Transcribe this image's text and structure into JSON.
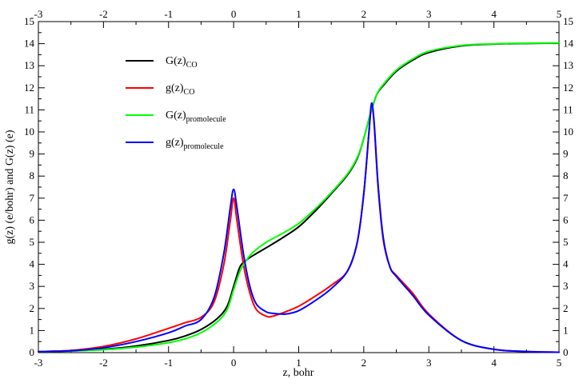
{
  "chart_data": {
    "type": "line",
    "xlabel": "z,  bohr",
    "ylabel": "g(z) (e/bohr)   and   G(z)  (e)",
    "xlim": [
      -3,
      5
    ],
    "ylim": [
      0,
      15
    ],
    "x_ticks": [
      "-3",
      "-2",
      "-1",
      "0",
      "1",
      "2",
      "3",
      "4",
      "5"
    ],
    "y_ticks": [
      "0",
      "1",
      "2",
      "3",
      "4",
      "5",
      "6",
      "7",
      "8",
      "9",
      "10",
      "11",
      "12",
      "13",
      "14",
      "15"
    ],
    "top_axis_ticks": true,
    "right_axis_ticks": true,
    "grid": false,
    "legend_position": "top-left",
    "series": [
      {
        "name": "G(z)",
        "subscript": "CO",
        "color": "#000000",
        "x": [
          -3.0,
          -2.5,
          -2.0,
          -1.5,
          -1.0,
          -0.75,
          -0.5,
          -0.25,
          -0.1,
          0.0,
          0.1,
          0.2,
          0.3,
          0.5,
          0.75,
          1.0,
          1.25,
          1.5,
          1.75,
          1.9,
          2.0,
          2.1,
          2.2,
          2.3,
          2.5,
          2.75,
          3.0,
          3.5,
          4.0,
          4.5,
          5.0
        ],
        "values": [
          0.05,
          0.08,
          0.15,
          0.3,
          0.55,
          0.75,
          1.05,
          1.55,
          2.1,
          3.0,
          3.9,
          4.2,
          4.4,
          4.75,
          5.2,
          5.7,
          6.4,
          7.2,
          8.05,
          8.8,
          9.7,
          10.8,
          11.7,
          12.1,
          12.75,
          13.25,
          13.6,
          13.9,
          13.98,
          14.01,
          14.02
        ]
      },
      {
        "name": "g(z)",
        "subscript": "CO",
        "color": "#ff0000",
        "x": [
          -3.0,
          -2.5,
          -2.0,
          -1.5,
          -1.0,
          -0.75,
          -0.5,
          -0.3,
          -0.15,
          -0.05,
          0.0,
          0.05,
          0.15,
          0.25,
          0.35,
          0.5,
          0.6,
          0.8,
          1.0,
          1.25,
          1.5,
          1.75,
          1.9,
          2.0,
          2.08,
          2.12,
          2.16,
          2.22,
          2.3,
          2.4,
          2.5,
          2.75,
          3.0,
          3.5,
          4.0,
          4.5,
          5.0
        ],
        "values": [
          0.05,
          0.1,
          0.28,
          0.62,
          1.1,
          1.35,
          1.6,
          2.3,
          4.0,
          6.0,
          7.0,
          6.0,
          4.0,
          2.7,
          1.95,
          1.65,
          1.65,
          1.85,
          2.1,
          2.55,
          3.05,
          3.7,
          5.0,
          7.2,
          10.0,
          11.2,
          10.3,
          7.5,
          5.1,
          3.9,
          3.5,
          2.7,
          1.75,
          0.55,
          0.15,
          0.05,
          0.02
        ]
      },
      {
        "name": "G(z)",
        "subscript": "promolecule",
        "color": "#00ff00",
        "x": [
          -3.0,
          -2.5,
          -2.0,
          -1.5,
          -1.0,
          -0.75,
          -0.5,
          -0.25,
          -0.1,
          0.0,
          0.1,
          0.2,
          0.3,
          0.5,
          0.75,
          1.0,
          1.25,
          1.5,
          1.75,
          1.9,
          2.0,
          2.1,
          2.2,
          2.3,
          2.5,
          2.75,
          3.0,
          3.5,
          4.0,
          4.5,
          5.0
        ],
        "values": [
          0.04,
          0.07,
          0.13,
          0.25,
          0.45,
          0.62,
          0.9,
          1.4,
          1.95,
          2.85,
          3.7,
          4.2,
          4.55,
          5.0,
          5.4,
          5.85,
          6.5,
          7.25,
          8.1,
          8.85,
          9.7,
          10.8,
          11.7,
          12.15,
          12.8,
          13.3,
          13.65,
          13.92,
          13.99,
          14.02,
          14.03
        ]
      },
      {
        "name": "g(z)",
        "subscript": "promolecule",
        "color": "#0000ff",
        "x": [
          -3.0,
          -2.5,
          -2.0,
          -1.5,
          -1.0,
          -0.75,
          -0.5,
          -0.3,
          -0.15,
          -0.05,
          0.0,
          0.05,
          0.15,
          0.25,
          0.35,
          0.5,
          0.6,
          0.8,
          1.0,
          1.25,
          1.5,
          1.75,
          1.9,
          2.0,
          2.08,
          2.12,
          2.16,
          2.22,
          2.3,
          2.4,
          2.5,
          2.75,
          3.0,
          3.5,
          4.0,
          4.5,
          5.0
        ],
        "values": [
          0.04,
          0.08,
          0.22,
          0.5,
          0.9,
          1.2,
          1.5,
          2.5,
          4.5,
          6.6,
          7.4,
          6.6,
          4.5,
          3.0,
          2.2,
          1.85,
          1.78,
          1.75,
          1.9,
          2.35,
          2.9,
          3.7,
          5.0,
          7.2,
          10.0,
          11.3,
          10.4,
          7.6,
          5.2,
          3.9,
          3.45,
          2.6,
          1.7,
          0.55,
          0.15,
          0.05,
          0.02
        ]
      }
    ]
  }
}
